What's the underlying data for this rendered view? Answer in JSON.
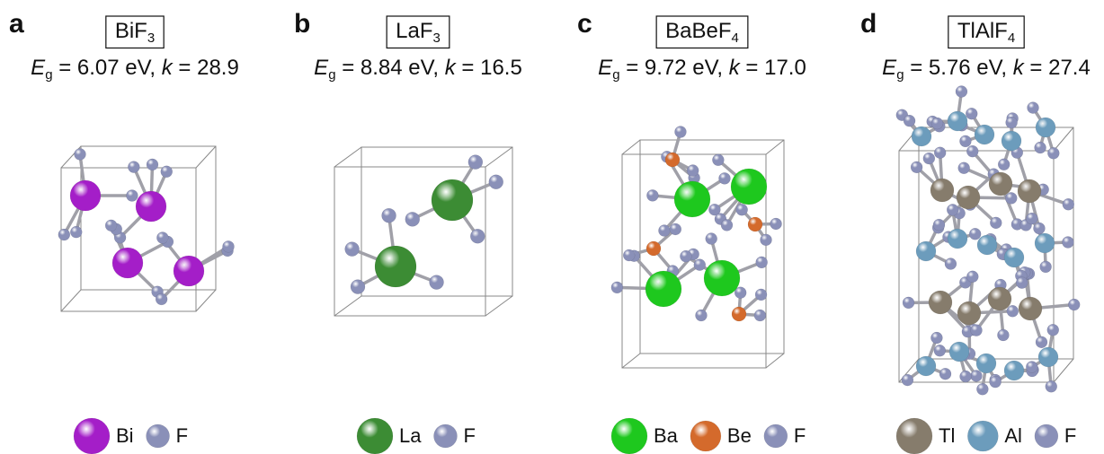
{
  "panels": [
    {
      "letter": "a",
      "formula": [
        {
          "t": "BiF",
          "style": "plain"
        },
        {
          "t": "3",
          "style": "sub"
        }
      ],
      "equation": [
        {
          "t": "E",
          "style": "italic"
        },
        {
          "t": "g",
          "style": "sub"
        },
        {
          "t": " = 6.07 eV, ",
          "style": "plain"
        },
        {
          "t": "k",
          "style": "italic"
        },
        {
          "t": " = 28.9",
          "style": "plain"
        }
      ],
      "legend": [
        {
          "label": "Bi",
          "color": "#a41ec8"
        },
        {
          "label": "F",
          "color": "#8a90b8"
        }
      ]
    },
    {
      "letter": "b",
      "formula": [
        {
          "t": "LaF",
          "style": "plain"
        },
        {
          "t": "3",
          "style": "sub"
        }
      ],
      "equation": [
        {
          "t": "E",
          "style": "italic"
        },
        {
          "t": "g",
          "style": "sub"
        },
        {
          "t": " = 8.84 eV, ",
          "style": "plain"
        },
        {
          "t": "k",
          "style": "italic"
        },
        {
          "t": " = 16.5",
          "style": "plain"
        }
      ],
      "legend": [
        {
          "label": "La",
          "color": "#3c8c34"
        },
        {
          "label": "F",
          "color": "#8a90b8"
        }
      ]
    },
    {
      "letter": "c",
      "formula": [
        {
          "t": "BaBeF",
          "style": "plain"
        },
        {
          "t": "4",
          "style": "sub"
        }
      ],
      "equation": [
        {
          "t": "E",
          "style": "italic"
        },
        {
          "t": "g",
          "style": "sub"
        },
        {
          "t": " = 9.72 eV, ",
          "style": "plain"
        },
        {
          "t": "k",
          "style": "italic"
        },
        {
          "t": " = 17.0",
          "style": "plain"
        }
      ],
      "legend": [
        {
          "label": "Ba",
          "color": "#1ec81e"
        },
        {
          "label": "Be",
          "color": "#d46a2c"
        },
        {
          "label": "F",
          "color": "#8a90b8"
        }
      ]
    },
    {
      "letter": "d",
      "formula": [
        {
          "t": "TlAlF",
          "style": "plain"
        },
        {
          "t": "4",
          "style": "sub"
        }
      ],
      "equation": [
        {
          "t": "E",
          "style": "italic"
        },
        {
          "t": "g",
          "style": "sub"
        },
        {
          "t": " = 5.76 eV, ",
          "style": "plain"
        },
        {
          "t": "k",
          "style": "italic"
        },
        {
          "t": " = 27.4",
          "style": "plain"
        }
      ],
      "legend": [
        {
          "label": "Tl",
          "color": "#867c6c"
        },
        {
          "label": "Al",
          "color": "#6c9cbc"
        },
        {
          "label": "F",
          "color": "#8a90b8"
        }
      ]
    }
  ]
}
